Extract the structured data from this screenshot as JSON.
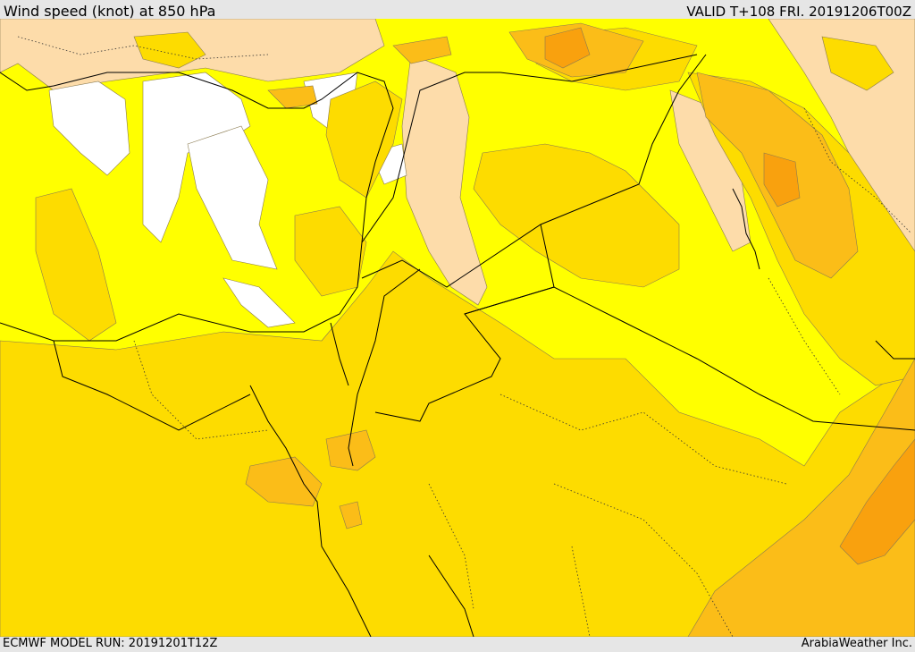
{
  "header": {
    "title": "Wind speed (knot) at 850 hPa",
    "valid": "VALID T+108 FRI. 20191206T00Z"
  },
  "footer": {
    "model_run": "ECMWF MODEL RUN: 20191201T12Z",
    "credit": "ArabiaWeather Inc."
  },
  "palette": {
    "calm_white": "#ffffff",
    "light_wheat": "#fddcaa",
    "yellow": "#ffff00",
    "gold": "#fddc00",
    "amber": "#fbbd18",
    "orange": "#f9a10e",
    "boundary": "#000000",
    "frame": "#e6e6e6"
  }
}
